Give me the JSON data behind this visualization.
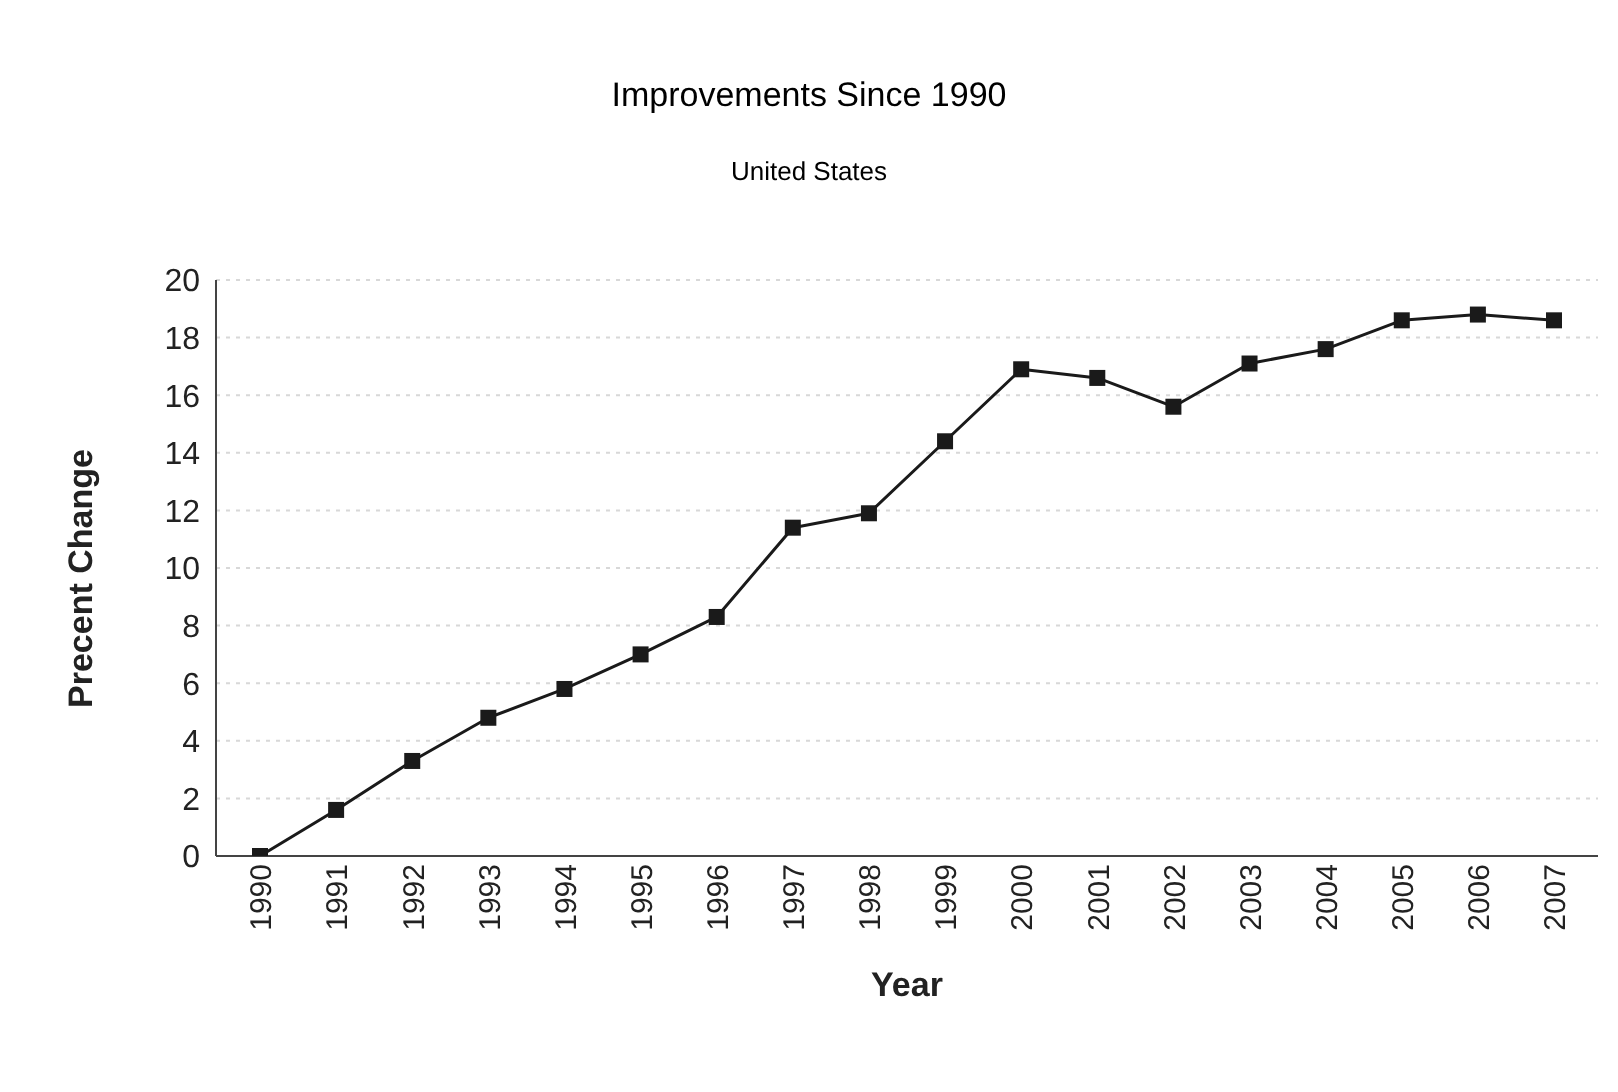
{
  "chart_data": {
    "type": "line",
    "title": "Improvements Since 1990",
    "subtitle": "United States",
    "xlabel": "Year",
    "ylabel": "Precent Change",
    "categories": [
      "1990",
      "1991",
      "1992",
      "1993",
      "1994",
      "1995",
      "1996",
      "1997",
      "1998",
      "1999",
      "2000",
      "2001",
      "2002",
      "2003",
      "2004",
      "2005",
      "2006",
      "2007"
    ],
    "series": [
      {
        "color": "#1a1a1a",
        "values": [
          0,
          1.6,
          3.3,
          4.8,
          5.8,
          7.0,
          8.3,
          11.4,
          11.9,
          14.4,
          16.9,
          16.6,
          15.6,
          17.1,
          17.6,
          18.6,
          18.8,
          18.6
        ]
      }
    ],
    "ylim": [
      0,
      20
    ],
    "yticks": [
      0,
      2,
      4,
      6,
      8,
      10,
      12,
      14,
      16,
      18,
      20
    ],
    "grid": "y",
    "marker": "square",
    "line_style": "solid"
  }
}
